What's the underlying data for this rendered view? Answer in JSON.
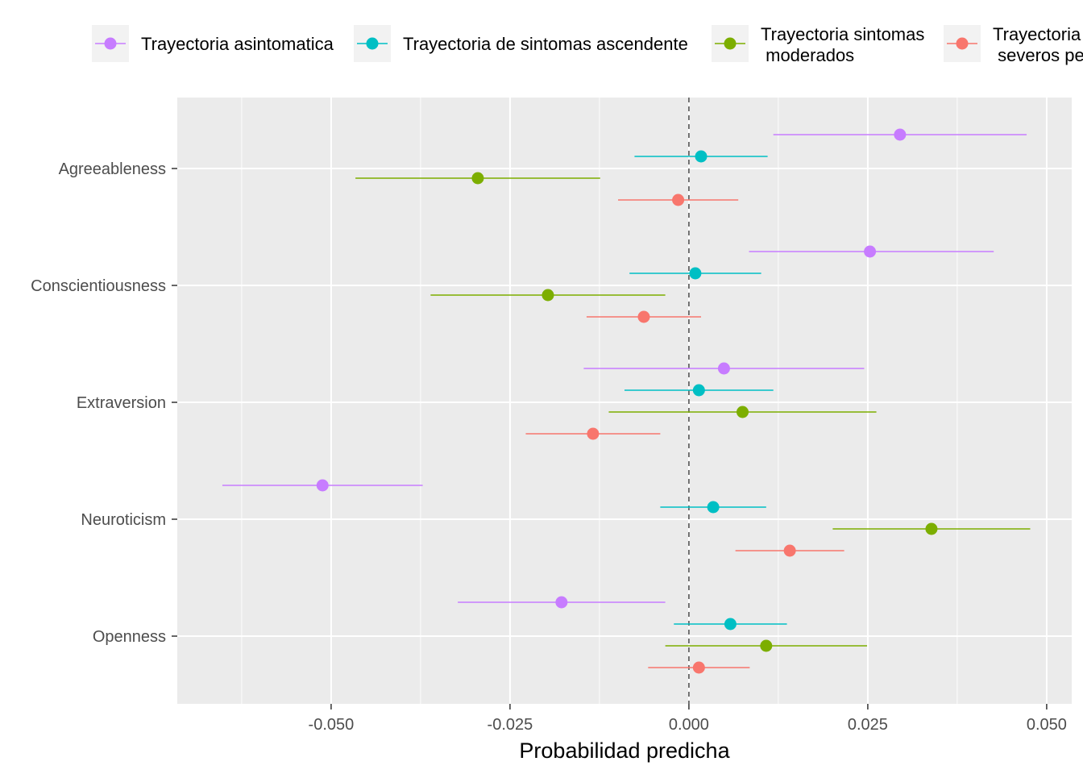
{
  "chart_data": {
    "type": "scatter",
    "variant": "dot-whisker",
    "title": "",
    "xlabel": "Probabilidad predicha",
    "ylabel": "",
    "xlim": [
      -0.0715,
      0.0535
    ],
    "xticks": [
      -0.05,
      -0.025,
      0.0,
      0.025,
      0.05
    ],
    "xtick_labels": [
      "-0.050",
      "-0.025",
      "0.000",
      "0.025",
      "0.050"
    ],
    "reference_line": {
      "x": 0.0,
      "style": "dashed",
      "color": "#666666"
    },
    "categories": [
      "Agreeableness",
      "Conscientiousness",
      "Extraversion",
      "Neuroticism",
      "Openness"
    ],
    "grid": true,
    "legend_position": "top",
    "series": [
      {
        "name": "Trayectoria asintomatica",
        "color": "#C77CFF",
        "values": [
          0.0295,
          0.0253,
          0.0049,
          -0.0512,
          -0.0178
        ],
        "low": [
          0.0118,
          0.0084,
          -0.0147,
          -0.0652,
          -0.0323
        ],
        "high": [
          0.0472,
          0.0426,
          0.0245,
          -0.0372,
          -0.0033
        ]
      },
      {
        "name": "Trayectoria de sintomas ascendente",
        "color": "#00BFC4",
        "values": [
          0.0017,
          0.0009,
          0.0014,
          0.0034,
          0.0058
        ],
        "low": [
          -0.0076,
          -0.0083,
          -0.009,
          -0.004,
          -0.0021
        ],
        "high": [
          0.011,
          0.0101,
          0.0118,
          0.0108,
          0.0137
        ]
      },
      {
        "name": "Trayectoria sintomas\n moderados",
        "color": "#7CAE00",
        "values": [
          -0.0295,
          -0.0197,
          0.0075,
          0.0339,
          0.0108
        ],
        "low": [
          -0.0466,
          -0.0361,
          -0.0112,
          0.0201,
          -0.0033
        ],
        "high": [
          -0.0124,
          -0.0033,
          0.0262,
          0.0477,
          0.0249
        ]
      },
      {
        "name": "Trayectoria sintomas\n severos persistentes",
        "color": "#F8766D",
        "values": [
          -0.0015,
          -0.0063,
          -0.0134,
          0.0141,
          0.0014
        ],
        "low": [
          -0.0099,
          -0.0143,
          -0.0228,
          0.0065,
          -0.0057
        ],
        "high": [
          0.0069,
          0.0017,
          -0.004,
          0.0217,
          0.0085
        ]
      }
    ]
  }
}
